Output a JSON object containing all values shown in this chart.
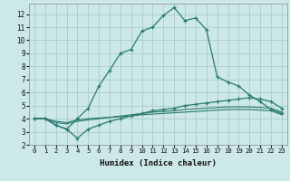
{
  "xlabel": "Humidex (Indice chaleur)",
  "bg_color": "#cce8e8",
  "grid_color": "#aacccc",
  "line_color": "#2a7a70",
  "xlim": [
    -0.5,
    23.5
  ],
  "ylim": [
    2,
    12.8
  ],
  "xticks": [
    0,
    1,
    2,
    3,
    4,
    5,
    6,
    7,
    8,
    9,
    10,
    11,
    12,
    13,
    14,
    15,
    16,
    17,
    18,
    19,
    20,
    21,
    22,
    23
  ],
  "yticks": [
    2,
    3,
    4,
    5,
    6,
    7,
    8,
    9,
    10,
    11,
    12
  ],
  "series1_x": [
    0,
    1,
    2,
    3,
    4,
    5,
    6,
    7,
    8,
    9,
    10,
    11,
    12,
    13,
    14,
    15,
    16,
    17,
    18,
    19,
    20,
    21,
    22,
    23
  ],
  "series1_y": [
    4.0,
    4.0,
    3.5,
    3.2,
    4.0,
    4.8,
    6.5,
    7.7,
    9.0,
    9.3,
    10.7,
    11.0,
    11.9,
    12.5,
    11.5,
    11.7,
    10.8,
    7.2,
    6.8,
    6.5,
    5.8,
    5.3,
    4.7,
    4.4
  ],
  "series2_x": [
    0,
    1,
    2,
    3,
    4,
    5,
    6,
    7,
    8,
    9,
    10,
    11,
    12,
    13,
    14,
    15,
    16,
    17,
    18,
    19,
    20,
    21,
    22,
    23
  ],
  "series2_y": [
    4.0,
    4.0,
    3.5,
    3.2,
    2.5,
    3.2,
    3.5,
    3.8,
    4.0,
    4.2,
    4.4,
    4.6,
    4.7,
    4.8,
    5.0,
    5.1,
    5.2,
    5.3,
    5.4,
    5.5,
    5.6,
    5.5,
    5.3,
    4.8
  ],
  "series3_x": [
    0,
    1,
    2,
    3,
    4,
    5,
    6,
    7,
    8,
    9,
    10,
    11,
    12,
    13,
    14,
    15,
    16,
    17,
    18,
    19,
    20,
    21,
    22,
    23
  ],
  "series3_y": [
    4.0,
    4.0,
    3.7,
    3.6,
    3.8,
    3.9,
    4.0,
    4.1,
    4.2,
    4.3,
    4.4,
    4.5,
    4.55,
    4.6,
    4.7,
    4.75,
    4.8,
    4.85,
    4.9,
    4.9,
    4.9,
    4.85,
    4.8,
    4.5
  ],
  "series4_x": [
    0,
    1,
    2,
    3,
    4,
    5,
    6,
    7,
    8,
    9,
    10,
    11,
    12,
    13,
    14,
    15,
    16,
    17,
    18,
    19,
    20,
    21,
    22,
    23
  ],
  "series4_y": [
    4.0,
    4.0,
    3.8,
    3.7,
    3.9,
    4.0,
    4.05,
    4.1,
    4.15,
    4.2,
    4.3,
    4.35,
    4.4,
    4.45,
    4.5,
    4.55,
    4.6,
    4.65,
    4.7,
    4.7,
    4.7,
    4.65,
    4.6,
    4.3
  ]
}
